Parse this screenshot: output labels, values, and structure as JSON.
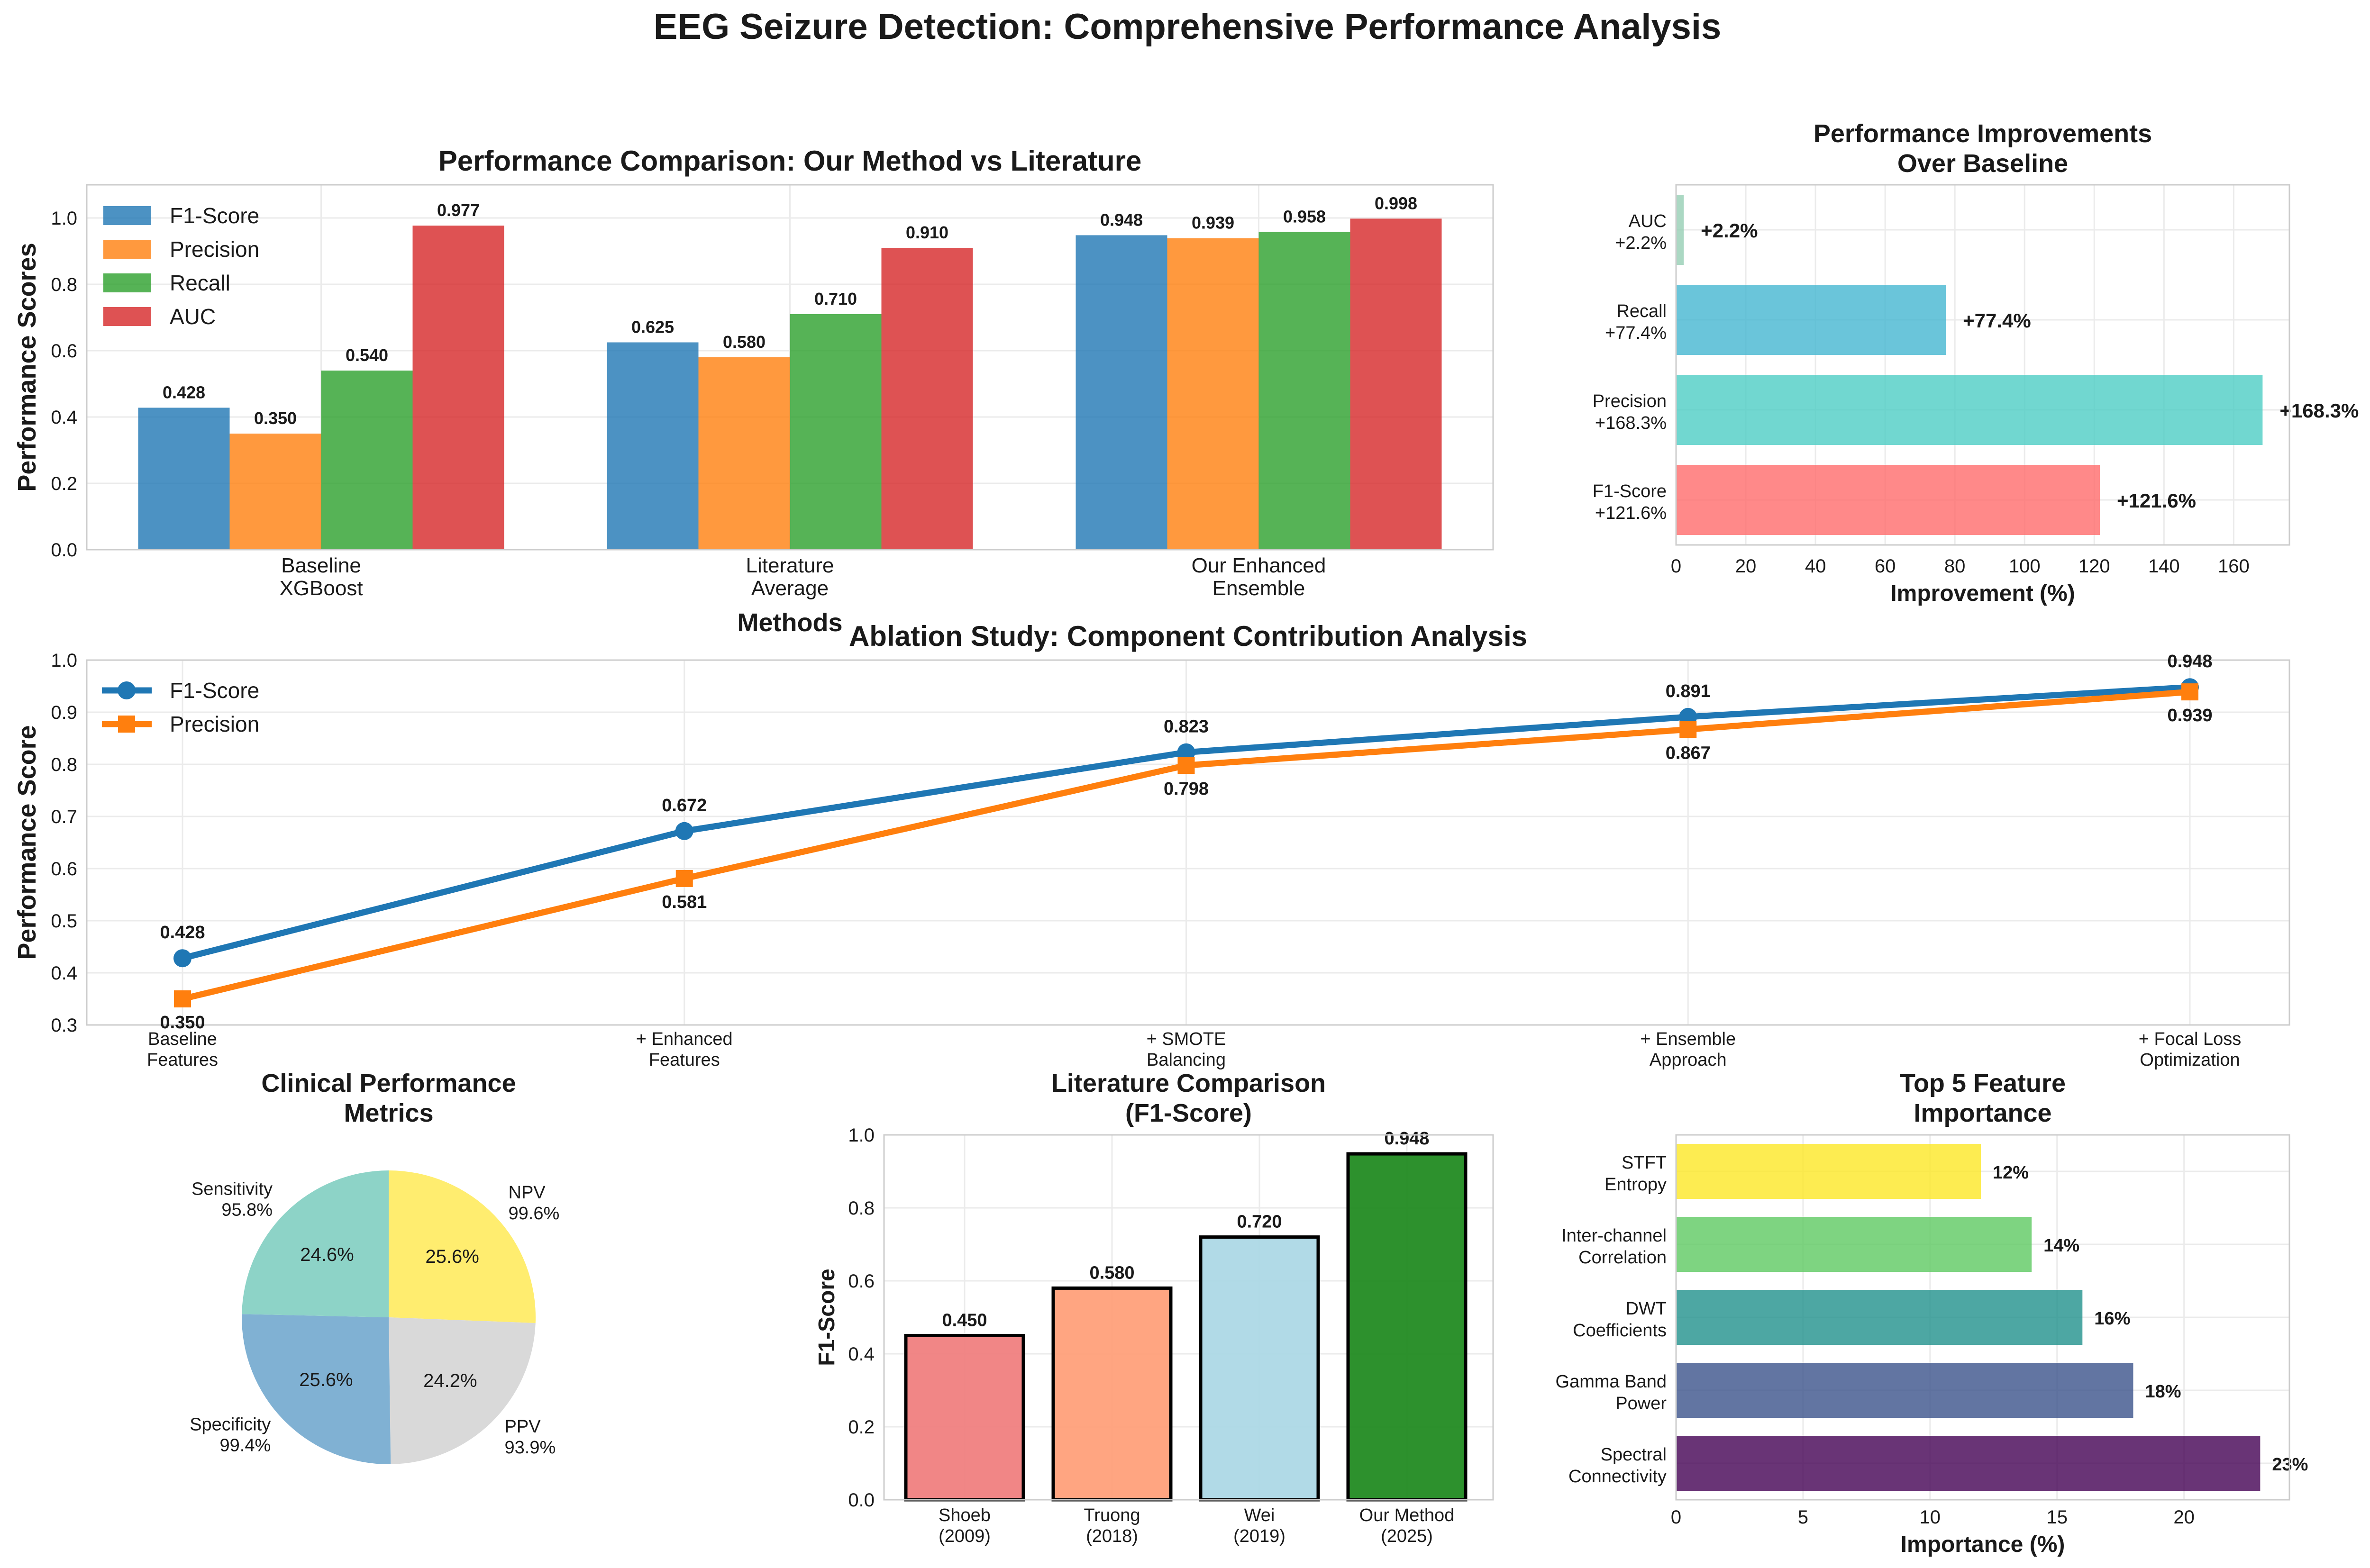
{
  "figure": {
    "title": "EEG Seizure Detection: Comprehensive Performance Analysis"
  },
  "chart_data": [
    {
      "id": "perf",
      "type": "bar",
      "title": "Performance Comparison: Our Method vs Literature",
      "xlabel": "Methods",
      "ylabel": "Performance Scores",
      "ylim": [
        0,
        1.1
      ],
      "yticks": [
        "0.0",
        "0.2",
        "0.4",
        "0.6",
        "0.8",
        "1.0"
      ],
      "categories": [
        [
          "Baseline",
          "XGBoost"
        ],
        [
          "Literature",
          "Average"
        ],
        [
          "Our Enhanced",
          "Ensemble"
        ]
      ],
      "series": [
        {
          "name": "F1-Score",
          "color": "#1f77b4",
          "values": [
            0.428,
            0.625,
            0.948
          ],
          "labels": [
            "0.428",
            "0.625",
            "0.948"
          ]
        },
        {
          "name": "Precision",
          "color": "#ff7f0e",
          "values": [
            0.35,
            0.58,
            0.939
          ],
          "labels": [
            "0.350",
            "0.580",
            "0.939"
          ]
        },
        {
          "name": "Recall",
          "color": "#2ca02c",
          "values": [
            0.54,
            0.71,
            0.958
          ],
          "labels": [
            "0.540",
            "0.710",
            "0.958"
          ]
        },
        {
          "name": "AUC",
          "color": "#d62728",
          "values": [
            0.977,
            0.91,
            0.998
          ],
          "labels": [
            "0.977",
            "0.910",
            "0.998"
          ]
        }
      ],
      "legend": "top-left",
      "grid": true
    },
    {
      "id": "improve",
      "type": "bar",
      "orientation": "horizontal",
      "title": [
        "Performance Improvements",
        "Over Baseline"
      ],
      "xlabel": "Improvement (%)",
      "xlim": [
        0,
        176
      ],
      "xticks": [
        "0",
        "20",
        "40",
        "60",
        "80",
        "100",
        "120",
        "140",
        "160"
      ],
      "categories": [
        [
          "F1-Score",
          "+121.6%"
        ],
        [
          "Precision",
          "+168.3%"
        ],
        [
          "Recall",
          "+77.4%"
        ],
        [
          "AUC",
          "+2.2%"
        ]
      ],
      "values": [
        121.6,
        168.3,
        77.4,
        2.2
      ],
      "labels": [
        "+121.6%",
        "+168.3%",
        "+77.4%",
        "+2.2%"
      ],
      "colors": [
        "#ff6b6b",
        "#4ecdc4",
        "#45b7d1",
        "#96ceb4"
      ],
      "grid": true
    },
    {
      "id": "ablation",
      "type": "line",
      "title": "Ablation Study: Component Contribution Analysis",
      "ylabel": "Performance Score",
      "ylim": [
        0.3,
        1.0
      ],
      "yticks": [
        "0.3",
        "0.4",
        "0.5",
        "0.6",
        "0.7",
        "0.8",
        "0.9",
        "1.0"
      ],
      "categories": [
        [
          "Baseline",
          "Features"
        ],
        [
          "+ Enhanced",
          "Features"
        ],
        [
          "+ SMOTE",
          "Balancing"
        ],
        [
          "+ Ensemble",
          "Approach"
        ],
        [
          "+ Focal Loss",
          "Optimization"
        ]
      ],
      "series": [
        {
          "name": "F1-Score",
          "color": "#1f77b4",
          "marker": "circle",
          "values": [
            0.428,
            0.672,
            0.823,
            0.891,
            0.948
          ],
          "labels": [
            "0.428",
            "0.672",
            "0.823",
            "0.891",
            "0.948"
          ]
        },
        {
          "name": "Precision",
          "color": "#ff7f0e",
          "marker": "square",
          "values": [
            0.35,
            0.581,
            0.798,
            0.867,
            0.939
          ],
          "labels": [
            "0.350",
            "0.581",
            "0.798",
            "0.867",
            "0.939"
          ]
        }
      ],
      "legend": "top-left",
      "grid": true
    },
    {
      "id": "pie",
      "type": "pie",
      "title": [
        "Clinical Performance",
        "Metrics"
      ],
      "slices": [
        {
          "label": [
            "NPV",
            "99.6%"
          ],
          "value": 99.6,
          "pct": "25.6%",
          "color": "#ffed6f"
        },
        {
          "label": [
            "PPV",
            "93.9%"
          ],
          "value": 93.9,
          "pct": "24.2%",
          "color": "#d9d9d9"
        },
        {
          "label": [
            "Specificity",
            "99.4%"
          ],
          "value": 99.4,
          "pct": "25.6%",
          "color": "#80b1d3"
        },
        {
          "label": [
            "Sensitivity",
            "95.8%"
          ],
          "value": 95.8,
          "pct": "24.6%",
          "color": "#8dd3c7"
        }
      ]
    },
    {
      "id": "lit",
      "type": "bar",
      "title": [
        "Literature Comparison",
        "(F1-Score)"
      ],
      "ylabel": "F1-Score",
      "ylim": [
        0,
        1.0
      ],
      "yticks": [
        "0.0",
        "0.2",
        "0.4",
        "0.6",
        "0.8",
        "1.0"
      ],
      "categories": [
        [
          "Shoeb",
          "(2009)"
        ],
        [
          "Truong",
          "(2018)"
        ],
        [
          "Wei",
          "(2019)"
        ],
        [
          "Our Method",
          "(2025)"
        ]
      ],
      "values": [
        0.45,
        0.58,
        0.72,
        0.948
      ],
      "labels": [
        "0.450",
        "0.580",
        "0.720",
        "0.948"
      ],
      "colors": [
        "#f08080",
        "#ffa07a",
        "#add8e6",
        "#228b22"
      ],
      "grid": true
    },
    {
      "id": "feat",
      "type": "bar",
      "orientation": "horizontal",
      "title": [
        "Top 5 Feature",
        "Importance"
      ],
      "xlabel": "Importance (%)",
      "xlim": [
        0,
        24.15
      ],
      "xticks": [
        "0",
        "5",
        "10",
        "15",
        "20"
      ],
      "categories": [
        [
          "Spectral",
          "Connectivity"
        ],
        [
          "Gamma Band",
          "Power"
        ],
        [
          "DWT",
          "Coefficients"
        ],
        [
          "Inter-channel",
          "Correlation"
        ],
        [
          "STFT",
          "Entropy"
        ]
      ],
      "values": [
        23,
        18,
        16,
        14,
        12
      ],
      "labels": [
        "23%",
        "18%",
        "16%",
        "14%",
        "12%"
      ],
      "colors": [
        "#440154",
        "#3b528b",
        "#21918c",
        "#5ec962",
        "#fde725"
      ],
      "grid": true
    }
  ]
}
